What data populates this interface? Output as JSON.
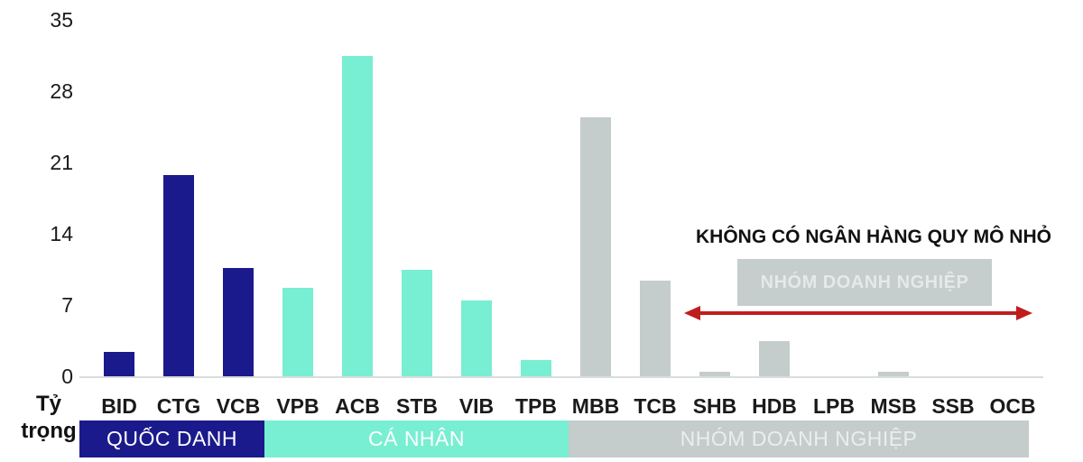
{
  "chart_data": {
    "type": "bar",
    "title": "",
    "xlabel": "",
    "ylabel": "Tỷ trọng",
    "ylabel_lines": [
      "Tỷ",
      "trọng"
    ],
    "ylim": [
      0,
      35
    ],
    "yticks": [
      35,
      28,
      21,
      14,
      7,
      0
    ],
    "grid": false,
    "legend_position": "none",
    "categories": [
      "BID",
      "CTG",
      "VCB",
      "VPB",
      "ACB",
      "STB",
      "VIB",
      "TPB",
      "MBB",
      "TCB",
      "SHB",
      "HDB",
      "LPB",
      "MSB",
      "SSB",
      "OCB"
    ],
    "values": [
      2.4,
      19.8,
      10.6,
      8.7,
      31.5,
      10.5,
      7.4,
      1.6,
      25.4,
      9.4,
      0.4,
      3.5,
      0,
      0.4,
      0,
      0
    ],
    "group_of": [
      0,
      0,
      0,
      1,
      1,
      1,
      1,
      1,
      2,
      2,
      2,
      2,
      2,
      2,
      2,
      2
    ],
    "groups": [
      {
        "label": "QUỐC DANH",
        "color": "#1a1a8c",
        "text_color": "#ffffff",
        "categories": [
          "BID",
          "CTG",
          "VCB"
        ]
      },
      {
        "label": "CÁ NHÂN",
        "color": "#78eed3",
        "text_color": "#ffffff",
        "categories": [
          "VPB",
          "ACB",
          "STB",
          "VIB",
          "TPB"
        ]
      },
      {
        "label": "NHÓM DOANH NGHIỆP",
        "color": "#c4cccc",
        "text_color": "#e9eeee",
        "categories": [
          "MBB",
          "TCB",
          "SHB",
          "HDB",
          "LPB",
          "MSB",
          "SSB",
          "OCB"
        ]
      }
    ],
    "annotation": {
      "title": "KHÔNG CÓ NGÂN HÀNG QUY MÔ NHỎ",
      "box_label": "NHÓM DOANH NGHIỆP",
      "box_color": "#c5cdcd",
      "box_text_color": "#e4e9e9",
      "arrow_color": "#bf1d1d"
    },
    "colors": {
      "axis_line": "#d9dddd",
      "text": "#1a1a1a",
      "navy": "#1a1a8c",
      "mint": "#78eed3",
      "gray": "#c4cccc",
      "red": "#bf1d1d"
    }
  }
}
